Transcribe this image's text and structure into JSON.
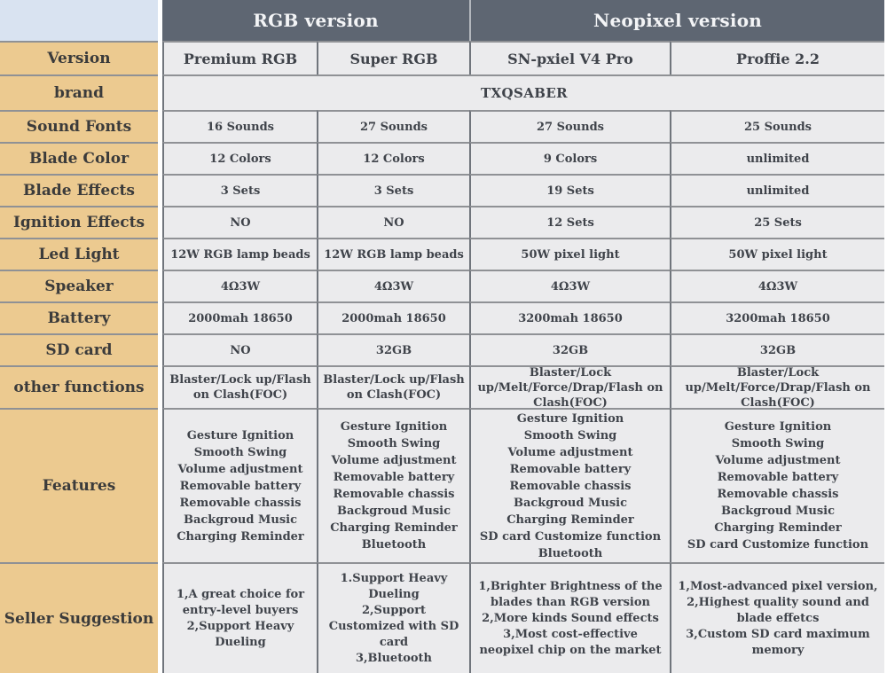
{
  "colors": {
    "group_header_bg": "#5e6672",
    "group_header_text": "#f3f4f6",
    "row_label_bg": "#ecca90",
    "corner_bg": "#d9e3f1",
    "cell_bg": "#ebebed",
    "border_dark": "#70757c",
    "border_light": "#8f9195"
  },
  "chart_data": {
    "type": "table",
    "column_groups": [
      {
        "label": "RGB version",
        "span": 2
      },
      {
        "label": "Neopixel version",
        "span": 2
      }
    ],
    "version_row": {
      "label": "Version",
      "cells": [
        "Premium RGB",
        "Super RGB",
        "SN-pxiel V4 Pro",
        "Proffie 2.2"
      ]
    },
    "brand_row": {
      "label": "brand",
      "value": "TXQSABER"
    },
    "spec_rows": [
      {
        "label": "Sound Fonts",
        "cells": [
          "16 Sounds",
          "27 Sounds",
          "27 Sounds",
          "25 Sounds"
        ]
      },
      {
        "label": "Blade Color",
        "cells": [
          "12 Colors",
          "12 Colors",
          "9 Colors",
          "unlimited"
        ]
      },
      {
        "label": "Blade Effects",
        "cells": [
          "3 Sets",
          "3 Sets",
          "19 Sets",
          "unlimited"
        ]
      },
      {
        "label": "Ignition Effects",
        "cells": [
          "NO",
          "NO",
          "12 Sets",
          "25 Sets"
        ]
      },
      {
        "label": "Led Light",
        "cells": [
          "12W RGB lamp beads",
          "12W RGB lamp beads",
          "50W pixel light",
          "50W pixel light"
        ]
      },
      {
        "label": "Speaker",
        "cells": [
          "4Ω3W",
          "4Ω3W",
          "4Ω3W",
          "4Ω3W"
        ]
      },
      {
        "label": "Battery",
        "cells": [
          "2000mah 18650",
          "2000mah 18650",
          "3200mah 18650",
          "3200mah 18650"
        ]
      },
      {
        "label": "SD card",
        "cells": [
          "NO",
          "32GB",
          "32GB",
          "32GB"
        ]
      },
      {
        "label": "other functions",
        "cells": [
          "Blaster/Lock up/Flash on Clash(FOC)",
          "Blaster/Lock up/Flash on Clash(FOC)",
          "Blaster/Lock up/Melt/Force/Drap/Flash on Clash(FOC)",
          "Blaster/Lock up/Melt/Force/Drap/Flash on Clash(FOC)"
        ]
      }
    ],
    "features_row": {
      "label": "Features",
      "cells": [
        [
          "Gesture Ignition",
          "Smooth Swing",
          "Volume adjustment",
          "Removable battery",
          "Removable chassis",
          "Backgroud Music",
          "Charging Reminder"
        ],
        [
          "Gesture Ignition",
          "Smooth Swing",
          "Volume adjustment",
          "Removable battery",
          "Removable chassis",
          "Backgroud Music",
          "Charging Reminder",
          "Bluetooth"
        ],
        [
          "Gesture Ignition",
          "Smooth Swing",
          "Volume adjustment",
          "Removable battery",
          "Removable chassis",
          "Backgroud Music",
          "Charging Reminder",
          "SD card Customize function",
          "Bluetooth"
        ],
        [
          "Gesture Ignition",
          "Smooth Swing",
          "Volume adjustment",
          "Removable battery",
          "Removable chassis",
          "Backgroud Music",
          "Charging Reminder",
          "SD card Customize function"
        ]
      ]
    },
    "seller_row": {
      "label": "Seller Suggestion",
      "cells": [
        [
          "1,A great choice for entry-level buyers",
          "2,Support Heavy Dueling"
        ],
        [
          "1.Support Heavy Dueling",
          "2,Support Customized with SD card",
          "3,Bluetooth"
        ],
        [
          "1,Brighter Brightness of the blades than RGB version",
          "2,More kinds Sound effects",
          "3,Most cost-effective neopixel chip on the market"
        ],
        [
          "1,Most-advanced pixel version,",
          "2,Highest quality sound and blade effetcs",
          "3,Custom SD card maximum memory"
        ]
      ]
    }
  }
}
